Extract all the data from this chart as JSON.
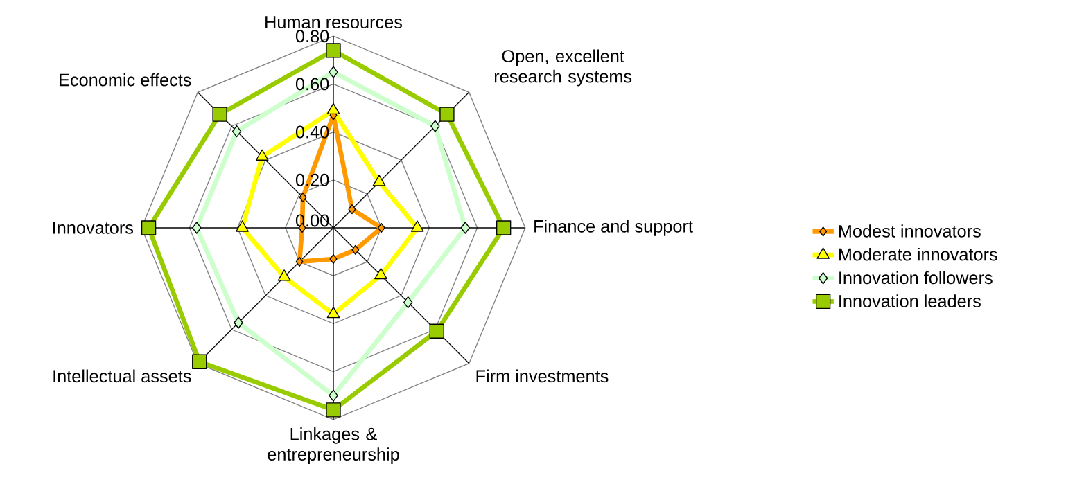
{
  "chart_data": {
    "type": "radar",
    "categories": [
      "Human resources",
      "Open, excellent research systems",
      "Finance and support",
      "Firm investments",
      "Linkages & entrepreneurship",
      "Intellectual assets",
      "Innovators",
      "Economic effects"
    ],
    "series": [
      {
        "name": "Modest innovators",
        "color": "#ff9900",
        "marker": "diamond",
        "values": [
          0.47,
          0.11,
          0.2,
          0.13,
          0.13,
          0.2,
          0.13,
          0.18
        ]
      },
      {
        "name": "Moderate innovators",
        "color": "#ffff00",
        "marker": "triangle",
        "values": [
          0.49,
          0.27,
          0.35,
          0.28,
          0.36,
          0.29,
          0.38,
          0.42
        ]
      },
      {
        "name": "Innovation followers",
        "color": "#ccffcc",
        "marker": "diamond",
        "values": [
          0.65,
          0.6,
          0.55,
          0.44,
          0.7,
          0.56,
          0.57,
          0.57
        ]
      },
      {
        "name": "Innovation leaders",
        "color": "#99cc00",
        "marker": "square",
        "values": [
          0.74,
          0.67,
          0.71,
          0.61,
          0.76,
          0.79,
          0.77,
          0.67
        ]
      }
    ],
    "ylim": [
      0,
      0.8
    ],
    "yticks": [
      {
        "value": 0,
        "label": "0.00"
      },
      {
        "value": 0.2,
        "label": "0.20"
      },
      {
        "value": 0.4,
        "label": "0.40"
      },
      {
        "value": 0.6,
        "label": "0.60"
      },
      {
        "value": 0.8,
        "label": "0.80"
      }
    ],
    "grid": true,
    "legend": "right"
  }
}
